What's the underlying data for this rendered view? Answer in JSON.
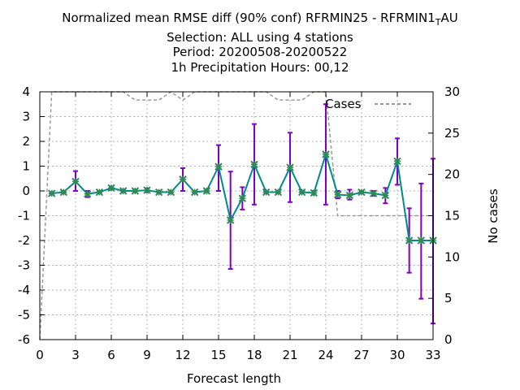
{
  "chart_data": {
    "type": "line",
    "title_lines": [
      "Normalized mean RMSE diff (90% conf) RFRMIN25 - RFRMIN1",
      "Selection: ALL using     4 stations",
      "Period: 20200508-20200522",
      "1h Precipitation   Hours:  00,12"
    ],
    "title_suffix_sub": "T",
    "title_suffix_tail": "AU",
    "xlabel": "Forecast length",
    "ylabel_right": "No cases",
    "xlim": [
      0,
      33
    ],
    "ylim": [
      -6,
      4
    ],
    "y2lim": [
      0,
      30
    ],
    "xticks": [
      0,
      3,
      6,
      9,
      12,
      15,
      18,
      21,
      24,
      27,
      30,
      33
    ],
    "yticks": [
      -6,
      -5,
      -4,
      -3,
      -2,
      -1,
      0,
      1,
      2,
      3,
      4
    ],
    "y2ticks": [
      0,
      5,
      10,
      15,
      20,
      25,
      30
    ],
    "grid": true,
    "legend_position": "top-right",
    "colors": {
      "line": "#008b8b",
      "points": "#2e8b57",
      "errorbars": "#8000c0",
      "cases": "#999999"
    },
    "series": [
      {
        "name": "",
        "x": [
          1,
          2,
          3,
          4,
          5,
          6,
          7,
          8,
          9,
          10,
          11,
          12,
          13,
          14,
          15,
          16,
          17,
          18,
          19,
          20,
          21,
          22,
          23,
          24,
          25,
          26,
          27,
          28,
          29,
          30,
          31,
          32,
          33
        ],
        "values": [
          -0.1,
          -0.05,
          0.38,
          -0.12,
          -0.05,
          0.12,
          0.0,
          0.0,
          0.03,
          -0.05,
          -0.05,
          0.47,
          -0.05,
          0.0,
          0.98,
          -1.18,
          -0.3,
          1.07,
          -0.05,
          -0.05,
          0.95,
          -0.05,
          -0.08,
          1.48,
          -0.15,
          -0.18,
          -0.05,
          -0.1,
          -0.18,
          1.2,
          -2.0,
          -2.0,
          -2.0
        ],
        "err_low": [
          -0.15,
          -0.1,
          0.0,
          -0.25,
          -0.1,
          0.05,
          -0.05,
          -0.05,
          -0.05,
          -0.1,
          -0.1,
          0.0,
          -0.1,
          -0.05,
          0.0,
          -3.15,
          -0.75,
          -0.55,
          -0.1,
          -0.1,
          -0.45,
          -0.1,
          -0.15,
          -0.55,
          -0.3,
          -0.35,
          -0.1,
          -0.2,
          -0.5,
          0.25,
          -3.3,
          -4.35,
          -5.35
        ],
        "err_high": [
          -0.05,
          0.0,
          0.8,
          0.0,
          0.0,
          0.18,
          0.05,
          0.05,
          0.1,
          0.0,
          0.0,
          0.92,
          0.0,
          0.05,
          1.85,
          0.78,
          0.15,
          2.7,
          0.0,
          0.0,
          2.35,
          0.0,
          0.0,
          3.5,
          0.0,
          0.05,
          0.0,
          0.0,
          0.12,
          2.12,
          -0.7,
          0.3,
          1.3
        ]
      },
      {
        "name": "Cases",
        "x": [
          0,
          1,
          2,
          3,
          4,
          5,
          6,
          7,
          8,
          9,
          10,
          11,
          12,
          13,
          14,
          15,
          16,
          17,
          18,
          19,
          20,
          21,
          22,
          23,
          24,
          25,
          26,
          27,
          28,
          29,
          30,
          31,
          32,
          33
        ],
        "values": [
          0,
          30,
          30,
          30,
          30,
          30,
          30,
          30,
          29,
          29,
          29,
          30,
          29,
          30,
          30,
          30,
          30,
          30,
          30,
          30,
          29,
          29,
          29,
          30,
          30,
          15,
          15,
          15,
          15,
          15,
          15,
          15,
          15,
          15
        ]
      }
    ]
  }
}
